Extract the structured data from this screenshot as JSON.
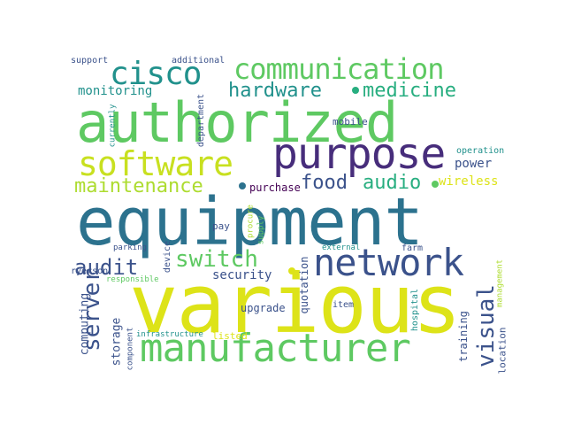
{
  "word_cloud": {
    "palette": {
      "dark_purple": "#440154",
      "indigo": "#3b528b",
      "teal_blue": "#2c728e",
      "teal": "#21918c",
      "green_teal": "#28ae80",
      "green": "#5ec962",
      "light_green": "#addc30",
      "yellow": "#dde318"
    },
    "words": [
      {
        "text": "equipment",
        "color": "#2c728e"
      },
      {
        "text": "various",
        "color": "#dde318"
      },
      {
        "text": "authorized",
        "color": "#5ec962"
      },
      {
        "text": "manufacturer",
        "color": "#5ec962"
      },
      {
        "text": "purpose",
        "color": "#472d7b"
      },
      {
        "text": "network",
        "color": "#3b528b"
      },
      {
        "text": "software",
        "color": "#c8e020"
      },
      {
        "text": "communication",
        "color": "#5ec962"
      },
      {
        "text": "cisco",
        "color": "#21918c"
      },
      {
        "text": "maintenance",
        "color": "#addc30"
      },
      {
        "text": "hardware",
        "color": "#21918c"
      },
      {
        "text": "medicine",
        "color": "#28ae80"
      },
      {
        "text": "audio",
        "color": "#28ae80"
      },
      {
        "text": "food",
        "color": "#3b528b"
      },
      {
        "text": "audit",
        "color": "#3b528b"
      },
      {
        "text": "switch",
        "color": "#5ec962"
      },
      {
        "text": "server",
        "color": "#3b528b"
      },
      {
        "text": "visual",
        "color": "#3b528b"
      },
      {
        "text": "security",
        "color": "#3b528b"
      },
      {
        "text": "monitoring",
        "color": "#21918c"
      },
      {
        "text": "power",
        "color": "#3b528b"
      },
      {
        "text": "wireless",
        "color": "#dde318"
      },
      {
        "text": "purchase",
        "color": "#440154"
      },
      {
        "text": "computing",
        "color": "#3b528b"
      },
      {
        "text": "storage",
        "color": "#3b528b"
      },
      {
        "text": "upgrade",
        "color": "#3b528b"
      },
      {
        "text": "quotation",
        "color": "#3b528b"
      },
      {
        "text": "training",
        "color": "#3b528b"
      },
      {
        "text": "location",
        "color": "#3b528b"
      },
      {
        "text": "mobile",
        "color": "#3b528b"
      },
      {
        "text": "support",
        "color": "#3b528b"
      },
      {
        "text": "additional",
        "color": "#3b528b"
      },
      {
        "text": "currently",
        "color": "#21918c"
      },
      {
        "text": "department",
        "color": "#3b528b"
      },
      {
        "text": "operation",
        "color": "#21918c"
      },
      {
        "text": "supply",
        "color": "#5ec962"
      },
      {
        "text": "procure",
        "color": "#addc30"
      },
      {
        "text": "pay",
        "color": "#3b528b"
      },
      {
        "text": "device",
        "color": "#3b528b"
      },
      {
        "text": "parking",
        "color": "#3b528b"
      },
      {
        "text": "ryerson",
        "color": "#3b528b"
      },
      {
        "text": "external",
        "color": "#21918c"
      },
      {
        "text": "farm",
        "color": "#3b528b"
      },
      {
        "text": "management",
        "color": "#addc30"
      },
      {
        "text": "responsible",
        "color": "#5ec962"
      },
      {
        "text": "item",
        "color": "#3b528b"
      },
      {
        "text": "hospital",
        "color": "#21918c"
      },
      {
        "text": "component",
        "color": "#3b528b"
      },
      {
        "text": "infrastructure",
        "color": "#21918c"
      },
      {
        "text": "listed",
        "color": "#dde318"
      }
    ]
  }
}
